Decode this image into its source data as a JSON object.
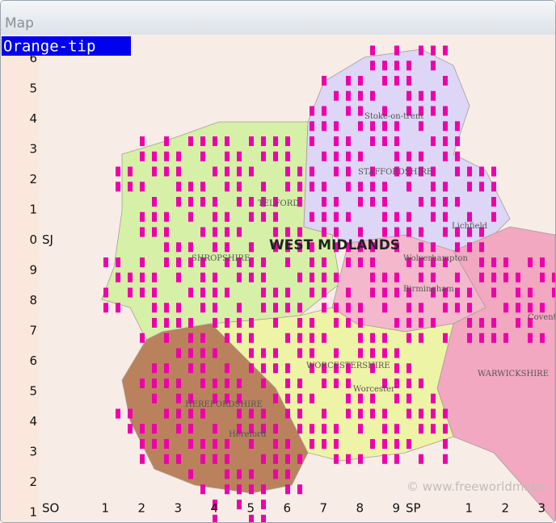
{
  "window": {
    "title": "Map"
  },
  "map": {
    "species": "Orange-tip",
    "row_labels": [
      "6",
      "5",
      "4",
      "3",
      "2",
      "1",
      "0",
      "9",
      "8",
      "7",
      "6",
      "5",
      "4",
      "3",
      "2",
      "1"
    ],
    "column_labels": [
      "1",
      "2",
      "3",
      "4",
      "5",
      "6",
      "7",
      "8",
      "9",
      "1",
      "2",
      "3"
    ],
    "grid_squares": {
      "north": "SJ",
      "south": "SO",
      "east": "SP"
    },
    "places": {
      "stoke": "Stoke-on-trent",
      "staffordshire": "STAFFORDSHIRE",
      "lichfield": "Lichfield",
      "west_midlands": "WEST MIDLANDS",
      "wolverhampton": "Wolverhampton",
      "birmingham": "Birmingham",
      "shropshire": "SHROPSHIRE",
      "telford": "TELFORD",
      "worcestershire": "WORCESTERSHIRE",
      "worcester": "Worcester",
      "herefordshire": "HEREFORDSHIRE",
      "hereford": "Hereford",
      "warwickshire": "WARWICKSHIRE",
      "coventry": "Coventry",
      "credit": "© www.freeworldmaps"
    }
  }
}
